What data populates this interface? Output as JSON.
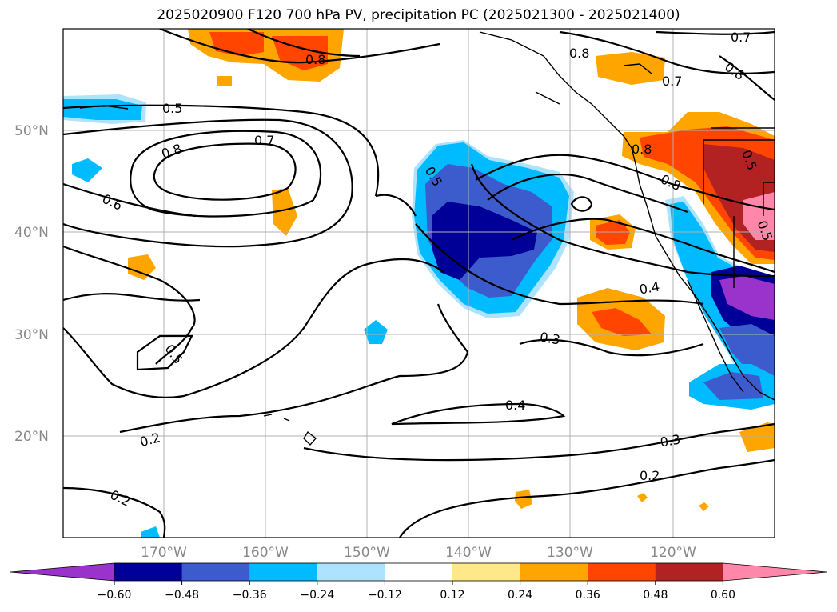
{
  "title": "2025020900 F120 700 hPa PV, precipitation PC (2025021300 - 2025021400)",
  "lat_labels": [
    "50°N",
    "40°N",
    "30°N",
    "20°N"
  ],
  "lon_labels": [
    "170°W",
    "160°W",
    "150°W",
    "140°W",
    "130°W",
    "120°W"
  ],
  "colorbar": {
    "ticks": [
      "−0.60",
      "−0.48",
      "−0.36",
      "−0.24",
      "−0.12",
      "0.12",
      "0.24",
      "0.36",
      "0.48",
      "0.60"
    ],
    "colors": [
      "#9933cc",
      "#000099",
      "#3c5bcc",
      "#00bbff",
      "#aee3ff",
      "#ffffff",
      "#ffe88a",
      "#ffa500",
      "#ff4500",
      "#b22222",
      "#ff88aa"
    ]
  },
  "contour_labels": [
    "0.5",
    "0.7",
    "0.8",
    "0.6",
    "0.5",
    "0.2",
    "0.2",
    "0.8",
    "0.5",
    "0.8",
    "0.7",
    "0.8",
    "0.7",
    "0.8",
    "0.5",
    "0.8",
    "0.4",
    "0.3",
    "0.4",
    "0.3",
    "0.2",
    "0.5"
  ],
  "colors": {
    "contour": "#000000",
    "grid": "#b0b0b0",
    "tick_label": "#888888"
  }
}
